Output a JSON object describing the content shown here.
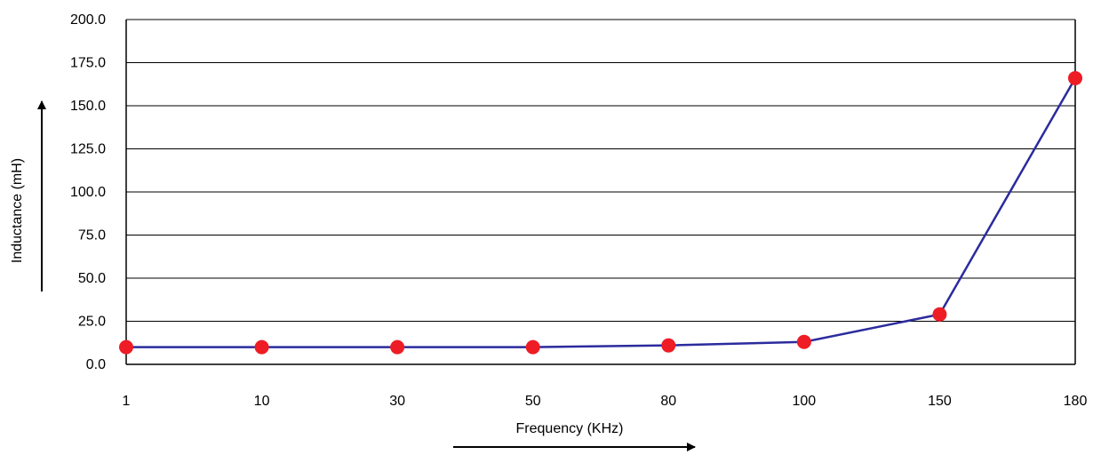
{
  "chart_data": {
    "type": "line",
    "title": "",
    "xlabel": "Frequency (KHz)",
    "ylabel": "Inductance (mH)",
    "categories": [
      "1",
      "10",
      "30",
      "50",
      "80",
      "100",
      "150",
      "180"
    ],
    "series": [
      {
        "values": [
          10,
          10,
          10,
          10,
          11,
          13,
          29,
          166
        ]
      }
    ],
    "ylim": [
      0,
      200
    ],
    "yticks": [
      "0.0",
      "25.0",
      "50.0",
      "75.0",
      "100.0",
      "125.0",
      "150.0",
      "175.0",
      "200.0"
    ],
    "ytick_values": [
      0,
      25,
      50,
      75,
      100,
      125,
      150,
      175,
      200
    ],
    "grid": "horizontal",
    "legend": "none",
    "colors": {
      "line": "#2b2b9e",
      "marker": "#ee1c25",
      "grid": "#000000",
      "axis_arrow": "#000000"
    }
  }
}
